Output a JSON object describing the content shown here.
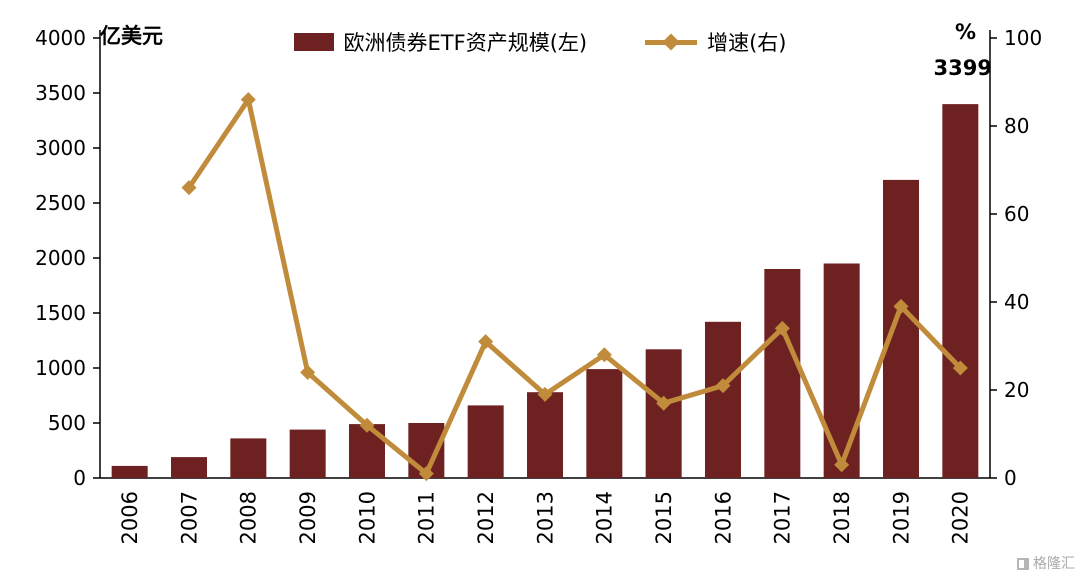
{
  "chart_data": {
    "type": "bar",
    "categories": [
      "2006",
      "2007",
      "2008",
      "2009",
      "2010",
      "2011",
      "2012",
      "2013",
      "2014",
      "2015",
      "2016",
      "2017",
      "2018",
      "2019",
      "2020"
    ],
    "series": [
      {
        "name": "欧洲债券ETF资产规模(左)",
        "type": "bar",
        "axis": "left",
        "values": [
          110,
          190,
          360,
          440,
          490,
          500,
          660,
          780,
          990,
          1170,
          1420,
          1900,
          1950,
          2710,
          3399
        ]
      },
      {
        "name": "增速(右)",
        "type": "line",
        "axis": "right",
        "values": [
          null,
          66,
          86,
          24,
          12,
          1,
          31,
          19,
          28,
          17,
          21,
          34,
          3,
          39,
          25
        ]
      }
    ],
    "left_axis": {
      "label": "亿美元",
      "min": 0,
      "max": 4000,
      "step": 500
    },
    "right_axis": {
      "label": "%",
      "min": 0,
      "max": 100,
      "step": 20
    },
    "annotation": {
      "text": "3399",
      "category": "2020"
    },
    "legend_position": "top-center",
    "grid": false,
    "colors": {
      "bar": "#6E2121",
      "line": "#C08B3A",
      "axis": "#000000"
    }
  },
  "watermark": {
    "text": "格隆汇"
  }
}
